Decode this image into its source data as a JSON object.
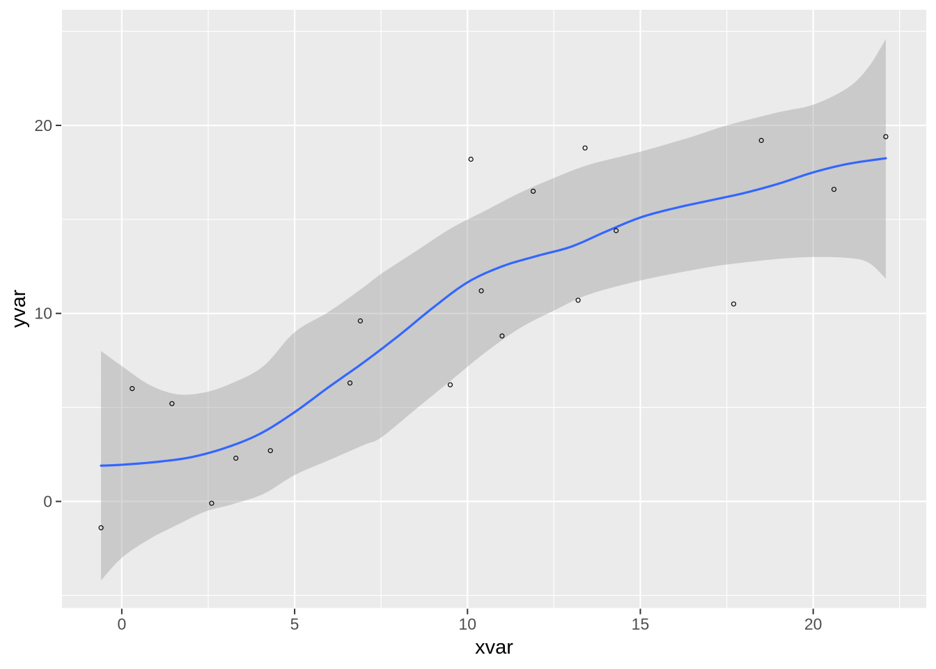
{
  "chart_data": {
    "type": "scatter",
    "title": "",
    "xlabel": "xvar",
    "ylabel": "yvar",
    "legend": "none",
    "grid": "major+minor",
    "panel_theme": "ggplot2-grey",
    "x_domain": [
      -1.73,
      23.27
    ],
    "y_domain": [
      -5.67,
      26.15
    ],
    "x_major_ticks": [
      0,
      5,
      10,
      15,
      20
    ],
    "x_tick_labels": [
      "0",
      "5",
      "10",
      "15",
      "20"
    ],
    "y_major_ticks": [
      0,
      10,
      20
    ],
    "y_tick_labels": [
      "0",
      "10",
      "20"
    ],
    "x_minor_ticks": [
      2.5,
      7.5,
      12.5,
      17.5,
      22.5
    ],
    "y_minor_ticks": [
      -5,
      5,
      15,
      25
    ],
    "points": [
      [
        -0.6,
        -1.4
      ],
      [
        0.3,
        6.0
      ],
      [
        1.45,
        5.2
      ],
      [
        2.6,
        -0.1
      ],
      [
        3.3,
        2.3
      ],
      [
        4.3,
        2.7
      ],
      [
        6.6,
        6.3
      ],
      [
        6.9,
        9.6
      ],
      [
        9.5,
        6.2
      ],
      [
        10.1,
        18.2
      ],
      [
        10.4,
        11.2
      ],
      [
        11.0,
        8.8
      ],
      [
        11.9,
        16.5
      ],
      [
        13.2,
        10.7
      ],
      [
        13.4,
        18.8
      ],
      [
        14.3,
        14.4
      ],
      [
        17.7,
        10.5
      ],
      [
        18.5,
        19.2
      ],
      [
        20.6,
        16.6
      ],
      [
        22.1,
        19.4
      ]
    ],
    "smooth_line": [
      [
        -0.6,
        1.9
      ],
      [
        0,
        1.95
      ],
      [
        1,
        2.1
      ],
      [
        2,
        2.35
      ],
      [
        3,
        2.85
      ],
      [
        4,
        3.6
      ],
      [
        5,
        4.75
      ],
      [
        6,
        6.1
      ],
      [
        7,
        7.4
      ],
      [
        8,
        8.8
      ],
      [
        9,
        10.3
      ],
      [
        10,
        11.65
      ],
      [
        11,
        12.5
      ],
      [
        12,
        13.05
      ],
      [
        13,
        13.55
      ],
      [
        14,
        14.35
      ],
      [
        15,
        15.1
      ],
      [
        16,
        15.6
      ],
      [
        17,
        16.0
      ],
      [
        18,
        16.4
      ],
      [
        19,
        16.9
      ],
      [
        20,
        17.5
      ],
      [
        21,
        17.95
      ],
      [
        22.1,
        18.25
      ]
    ],
    "ribbon": [
      [
        -0.6,
        -4.2,
        8.0
      ],
      [
        0,
        -3.0,
        7.2
      ],
      [
        0.8,
        -2.0,
        6.2
      ],
      [
        1.6,
        -1.25,
        5.7
      ],
      [
        2.4,
        -0.55,
        5.8
      ],
      [
        3.2,
        -0.15,
        6.3
      ],
      [
        4.1,
        0.4,
        7.2
      ],
      [
        5,
        1.4,
        9.0
      ],
      [
        6,
        2.2,
        10.1
      ],
      [
        7,
        3.0,
        11.4
      ],
      [
        7.5,
        3.4,
        12.1
      ],
      [
        8.5,
        4.9,
        13.3
      ],
      [
        9.5,
        6.4,
        14.5
      ],
      [
        10.5,
        7.9,
        15.45
      ],
      [
        11.5,
        9.2,
        16.4
      ],
      [
        12.5,
        10.15,
        17.2
      ],
      [
        13.5,
        11.0,
        17.9
      ],
      [
        15,
        11.75,
        18.6
      ],
      [
        16.5,
        12.3,
        19.4
      ],
      [
        17.5,
        12.6,
        20.0
      ],
      [
        19,
        12.9,
        20.7
      ],
      [
        20,
        13.0,
        21.1
      ],
      [
        21,
        12.95,
        22.0
      ],
      [
        21.6,
        12.7,
        23.1
      ],
      [
        22.1,
        11.85,
        24.6
      ]
    ],
    "colors": {
      "background": "#FFFFFF",
      "panel": "#EBEBEB",
      "grid": "#FFFFFF",
      "smooth_line": "#3366FF",
      "ribbon_fill": "#999999",
      "ribbon_alpha": 0.4,
      "point_stroke": "#000000",
      "tick_label": "#4D4D4D",
      "tick_mark": "#333333",
      "axis_title": "#000000"
    }
  }
}
